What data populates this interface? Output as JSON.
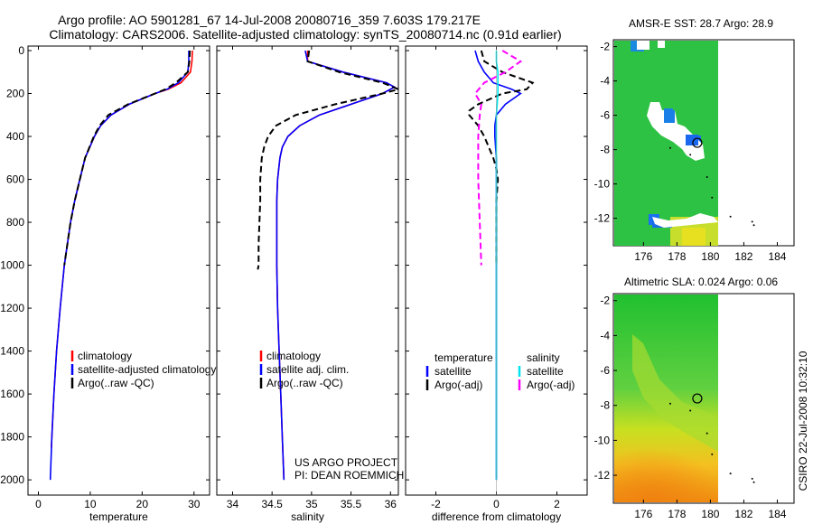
{
  "title_line1": "Argo profile: AO 5901281_67 14-Jul-2008 20080716_359 7.603S 179.217E",
  "title_line2": "Climatology: CARS2006. Satellite-adjusted climatology: synTS_20080714.nc (0.91d earlier)",
  "credit_line1": "US ARGO PROJECT",
  "credit_line2": "PI: DEAN ROEMMICH",
  "side_stamp": "CSIRO 22-Jul-2008 10:32:10",
  "colors": {
    "climatology": "#ff0000",
    "satellite": "#0000ff",
    "argo": "#000000",
    "salinity_sat": "#00e5ee",
    "salinity_argo": "#ff00ff"
  },
  "chart_data": [
    {
      "type": "line",
      "id": "temperature",
      "xlabel": "temperature",
      "xlim": [
        -2,
        33
      ],
      "ylim": [
        0,
        2050
      ],
      "xticks": [
        0,
        10,
        20,
        30
      ],
      "yticks": [
        0,
        200,
        400,
        600,
        800,
        1000,
        1200,
        1400,
        1600,
        1800,
        2000
      ],
      "legend": [
        "climatology",
        "satellite-adjusted climatology",
        "Argo(..raw -QC)"
      ],
      "series": [
        {
          "name": "climatology",
          "color": "#ff0000",
          "dash": "",
          "depth": [
            0,
            50,
            100,
            150,
            180,
            200,
            250,
            300,
            350,
            400,
            500,
            600,
            700,
            800,
            1000,
            1200,
            1400,
            1600,
            1800,
            1850
          ],
          "values": [
            29.7,
            29.6,
            29.3,
            27.5,
            25,
            22.5,
            17.5,
            14,
            12,
            10.8,
            9,
            8,
            7,
            6.2,
            5,
            4.2,
            3.5,
            3.0,
            2.6,
            2.5
          ]
        },
        {
          "name": "satellite-adjusted climatology",
          "color": "#0000ff",
          "dash": "",
          "depth": [
            0,
            50,
            100,
            150,
            180,
            200,
            250,
            300,
            350,
            400,
            500,
            600,
            700,
            800,
            1000,
            1200,
            1400,
            1600,
            1800,
            2000
          ],
          "values": [
            29.0,
            29.0,
            28.8,
            27.0,
            24.8,
            22.5,
            17.5,
            14,
            12,
            10.8,
            9,
            8,
            7,
            6.2,
            5,
            4.2,
            3.5,
            3.0,
            2.6,
            2.3
          ]
        },
        {
          "name": "Argo(..raw -QC)",
          "color": "#000000",
          "dash": "7,4",
          "depth": [
            0,
            50,
            100,
            150,
            180,
            200,
            250,
            300,
            350,
            400,
            500,
            600,
            700,
            800,
            1000
          ],
          "values": [
            29.2,
            29.1,
            28.8,
            26.5,
            24.5,
            22.5,
            17.3,
            13.5,
            11.8,
            10.7,
            9,
            8,
            7,
            6.2,
            5
          ]
        }
      ]
    },
    {
      "type": "line",
      "id": "salinity",
      "xlabel": "salinity",
      "xlim": [
        33.8,
        36.1
      ],
      "ylim": [
        0,
        2050
      ],
      "xticks": [
        34,
        34.5,
        35,
        35.5,
        36
      ],
      "legend": [
        "climatology",
        "satellite adj. clim.",
        "Argo(..raw -QC)"
      ],
      "series": [
        {
          "name": "climatology",
          "color": "#ff0000",
          "dash": "",
          "depth": [
            0,
            50,
            100,
            150,
            170,
            200,
            250,
            300,
            350,
            400,
            450,
            500,
            600,
            700,
            800,
            1000,
            1200,
            1400,
            1600,
            1800,
            2000
          ],
          "values": [
            34.95,
            34.95,
            35.4,
            35.95,
            36.05,
            35.9,
            35.5,
            35.1,
            34.85,
            34.7,
            34.63,
            34.6,
            34.57,
            34.56,
            34.56,
            34.56,
            34.57,
            34.59,
            34.61,
            34.63,
            34.65
          ]
        },
        {
          "name": "satellite adj. clim.",
          "color": "#0000ff",
          "dash": "",
          "depth": [
            0,
            50,
            100,
            150,
            170,
            200,
            250,
            300,
            350,
            400,
            450,
            500,
            600,
            700,
            800,
            1000,
            1200,
            1400,
            1600,
            1800,
            2000
          ],
          "values": [
            34.92,
            34.95,
            35.4,
            35.95,
            36.05,
            35.9,
            35.5,
            35.1,
            34.85,
            34.7,
            34.63,
            34.6,
            34.57,
            34.56,
            34.56,
            34.56,
            34.57,
            34.59,
            34.61,
            34.63,
            34.65
          ]
        },
        {
          "name": "Argo(..raw -QC)",
          "color": "#000000",
          "dash": "7,4",
          "depth": [
            0,
            50,
            100,
            150,
            180,
            200,
            250,
            300,
            350,
            400,
            450,
            500,
            600,
            700,
            800,
            900,
            1000,
            1020
          ],
          "values": [
            34.97,
            34.95,
            35.35,
            35.9,
            36.1,
            35.9,
            35.3,
            34.8,
            34.55,
            34.45,
            34.4,
            34.37,
            34.35,
            34.35,
            34.34,
            34.33,
            34.33,
            34.32
          ]
        }
      ]
    },
    {
      "type": "line",
      "id": "difference",
      "xlabel": "difference from climatology",
      "xlim": [
        -3,
        3
      ],
      "ylim": [
        0,
        2050
      ],
      "xticks": [
        -2,
        0,
        2
      ],
      "legend_left_title": "temperature",
      "legend_right_title": "salinity",
      "legend_left": [
        "satellite",
        "Argo(-adj)"
      ],
      "legend_right": [
        "satellite",
        "Argo(-adj)"
      ],
      "series": [
        {
          "name": "temperature satellite",
          "color": "#0000ff",
          "dash": "",
          "depth": [
            0,
            50,
            100,
            150,
            180,
            200,
            250,
            300,
            350,
            400,
            500,
            600,
            800,
            1000,
            1500,
            2000
          ],
          "values": [
            -0.7,
            -0.6,
            -0.4,
            -0.1,
            0.5,
            0.8,
            0.3,
            0.0,
            -0.05,
            -0.05,
            0.0,
            0.0,
            0.0,
            0.0,
            0.0,
            0.0
          ]
        },
        {
          "name": "temperature Argo(-adj)",
          "color": "#000000",
          "dash": "7,4",
          "depth": [
            0,
            50,
            100,
            150,
            180,
            200,
            250,
            280,
            300,
            350,
            400,
            500,
            550,
            600,
            700,
            800,
            1000
          ],
          "values": [
            -0.5,
            -0.4,
            0.2,
            1.2,
            1.0,
            0.2,
            -0.6,
            -0.9,
            -0.9,
            -0.6,
            -0.4,
            -0.1,
            0.0,
            0.05,
            0.0,
            0.0,
            0.0
          ]
        },
        {
          "name": "salinity satellite",
          "color": "#00e5ee",
          "dash": "",
          "depth": [
            0,
            50,
            100,
            200,
            300,
            400,
            600,
            800,
            1000,
            1500,
            2000
          ],
          "values": [
            0.0,
            0.0,
            0.05,
            0.05,
            0.0,
            0.0,
            0.0,
            0.0,
            0.0,
            0.0,
            0.0
          ]
        },
        {
          "name": "salinity Argo(-adj)",
          "color": "#ff00ff",
          "dash": "7,4",
          "depth": [
            0,
            50,
            100,
            150,
            200,
            250,
            300,
            400,
            500,
            600,
            800,
            1000
          ],
          "values": [
            0.2,
            0.8,
            0.3,
            -0.4,
            -0.7,
            -0.5,
            -0.55,
            -0.6,
            -0.6,
            -0.6,
            -0.55,
            -0.5
          ]
        }
      ]
    },
    {
      "type": "heatmap",
      "id": "sst-map",
      "title": "AMSR-E SST: 28.7 Argo: 28.9",
      "xlim": [
        174.2,
        185
      ],
      "ylim": [
        -13.6,
        -1.6
      ],
      "xticks": [
        176,
        178,
        180,
        182,
        184
      ],
      "yticks": [
        -2,
        -4,
        -6,
        -8,
        -10,
        -12
      ],
      "argo_position": [
        179.217,
        -7.603
      ]
    },
    {
      "type": "heatmap",
      "id": "sla-map",
      "title": "Altimetric SLA: 0.024 Argo: 0.06",
      "xlim": [
        174.2,
        185
      ],
      "ylim": [
        -13.6,
        -1.6
      ],
      "xticks": [
        176,
        178,
        180,
        182,
        184
      ],
      "yticks": [
        -2,
        -4,
        -6,
        -8,
        -10,
        -12
      ],
      "argo_position": [
        179.217,
        -7.603
      ]
    }
  ]
}
